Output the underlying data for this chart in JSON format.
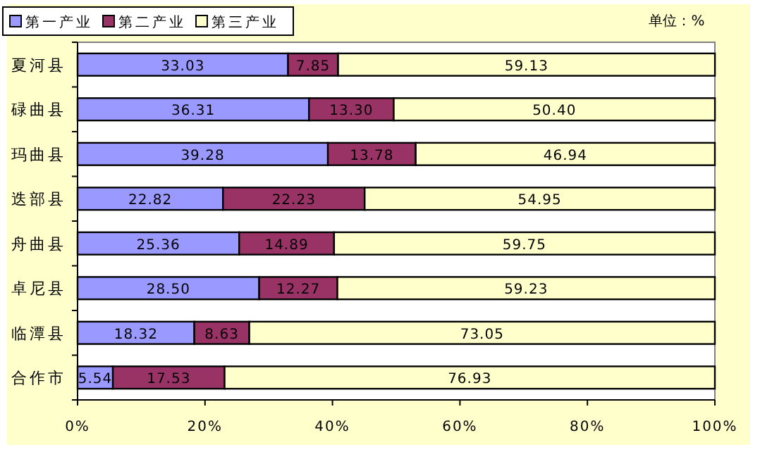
{
  "chart_data": {
    "type": "bar",
    "orientation": "horizontal",
    "stacked": true,
    "categories": [
      "夏河县",
      "碌曲县",
      "玛曲县",
      "迭部县",
      "舟曲县",
      "卓尼县",
      "临潭县",
      "合作市"
    ],
    "series": [
      {
        "name": "第一产业",
        "color": "#9999ff",
        "values": [
          33.03,
          36.31,
          39.28,
          22.82,
          25.36,
          28.5,
          18.32,
          5.54
        ],
        "value_labels": [
          "33.03",
          "36.31",
          "39.28",
          "22.82",
          "25.36",
          "28.50",
          "18.32",
          "5.54"
        ]
      },
      {
        "name": "第二产业",
        "color": "#993366",
        "values": [
          7.85,
          13.3,
          13.78,
          22.23,
          14.89,
          12.27,
          8.63,
          17.53
        ],
        "value_labels": [
          "7.85",
          "13.30",
          "13.78",
          "22.23",
          "14.89",
          "12.27",
          "8.63",
          "17.53"
        ]
      },
      {
        "name": "第三产业",
        "color": "#ffffcc",
        "values": [
          59.13,
          50.4,
          46.94,
          54.95,
          59.75,
          59.23,
          73.05,
          76.93
        ],
        "value_labels": [
          "59.13",
          "50.40",
          "46.94",
          "54.95",
          "59.75",
          "59.23",
          "73.05",
          "76.93"
        ]
      }
    ],
    "xlim": [
      0,
      100
    ],
    "xticks": [
      {
        "value": 0,
        "label": "0%"
      },
      {
        "value": 20,
        "label": "20%"
      },
      {
        "value": 40,
        "label": "40%"
      },
      {
        "value": 60,
        "label": "60%"
      },
      {
        "value": 80,
        "label": "80%"
      },
      {
        "value": 100,
        "label": "100%"
      }
    ],
    "legend": "top left",
    "annotations": [
      "单位：%"
    ]
  }
}
